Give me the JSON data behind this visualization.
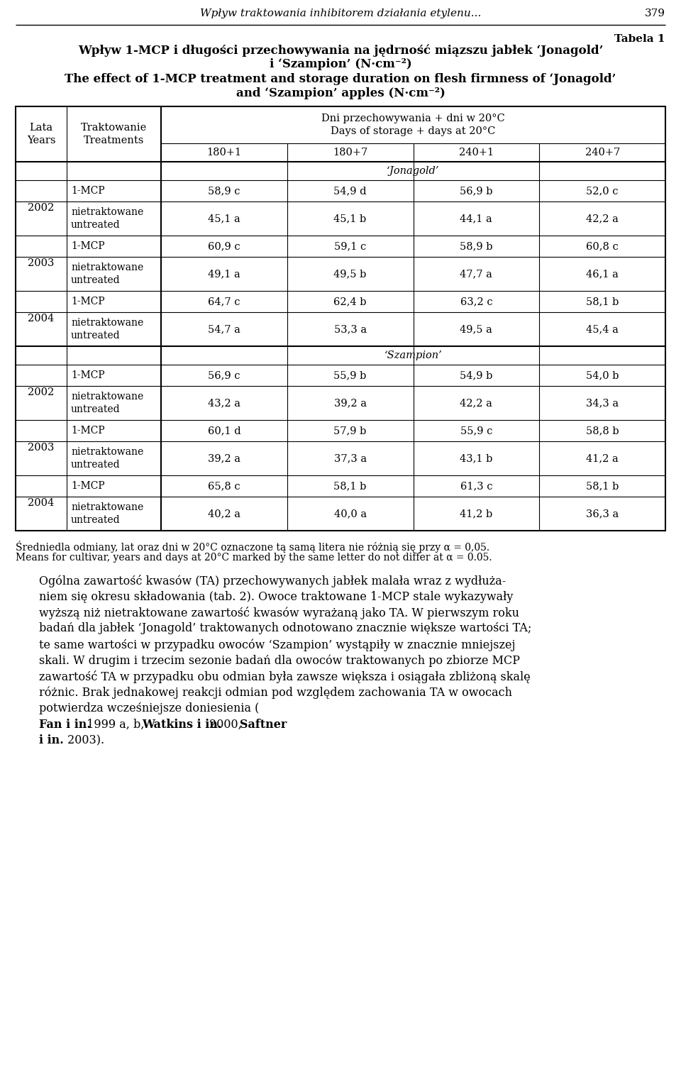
{
  "page_header_italic": "Wpływ traktowania inhibitorem działania etylenu...",
  "page_number": "379",
  "table_label": "Tabela 1",
  "title_pl_line1": "Wpływ 1-MCP i długości przechowywania na jędrność miązszu jabłek ‘Jonagold’",
  "title_pl_line2": "i ‘Szampion’ (N·cm⁻²)",
  "title_en_line1": "The effect of 1-MCP treatment and storage duration on flesh firmness of ‘Jonagold’",
  "title_en_line2": "and ‘Szampion’ apples (N·cm⁻²)",
  "col_header_pl": "Dni przechowywania + dni w 20°C",
  "col_header_en": "Days of storage + days at 20°C",
  "lata_years": "Lata\nYears",
  "traktowanie_treatments": "Traktowanie\nTreatments",
  "storage_cols": [
    "180+1",
    "180+7",
    "240+1",
    "240+7"
  ],
  "jonagold_label": "‘Jonagold’",
  "szampion_label": "‘Szampion’",
  "data_jonagold": [
    {
      "year": "2002",
      "treatment": "1-MCP",
      "vals": [
        "58,9 c",
        "54,9 d",
        "56,9 b",
        "52,0 c"
      ]
    },
    {
      "year": "",
      "treatment": "nietraktowane\nuntreated",
      "vals": [
        "45,1 a",
        "45,1 b",
        "44,1 a",
        "42,2 a"
      ]
    },
    {
      "year": "2003",
      "treatment": "1-MCP",
      "vals": [
        "60,9 c",
        "59,1 c",
        "58,9 b",
        "60,8 c"
      ]
    },
    {
      "year": "",
      "treatment": "nietraktowane\nuntreated",
      "vals": [
        "49,1 a",
        "49,5 b",
        "47,7 a",
        "46,1 a"
      ]
    },
    {
      "year": "2004",
      "treatment": "1-MCP",
      "vals": [
        "64,7 c",
        "62,4 b",
        "63,2 c",
        "58,1 b"
      ]
    },
    {
      "year": "",
      "treatment": "nietraktowane\nuntreated",
      "vals": [
        "54,7 a",
        "53,3 a",
        "49,5 a",
        "45,4 a"
      ]
    }
  ],
  "data_szampion": [
    {
      "year": "2002",
      "treatment": "1-MCP",
      "vals": [
        "56,9 c",
        "55,9 b",
        "54,9 b",
        "54,0 b"
      ]
    },
    {
      "year": "",
      "treatment": "nietraktowane\nuntreated",
      "vals": [
        "43,2 a",
        "39,2 a",
        "42,2 a",
        "34,3 a"
      ]
    },
    {
      "year": "2003",
      "treatment": "1-MCP",
      "vals": [
        "60,1 d",
        "57,9 b",
        "55,9 c",
        "58,8 b"
      ]
    },
    {
      "year": "",
      "treatment": "nietraktowane\nuntreated",
      "vals": [
        "39,2 a",
        "37,3 a",
        "43,1 b",
        "41,2 a"
      ]
    },
    {
      "year": "2004",
      "treatment": "1-MCP",
      "vals": [
        "65,8 c",
        "58,1 b",
        "61,3 c",
        "58,1 b"
      ]
    },
    {
      "year": "",
      "treatment": "nietraktowane\nuntreated",
      "vals": [
        "40,2 a",
        "40,0 a",
        "41,2 b",
        "36,3 a"
      ]
    }
  ],
  "footnote_pl": "Średniedla odmiany, lat oraz dni w 20°C oznaczone tą samą litera nie różnią się przy α = 0,05.",
  "footnote_en": "Means for cultivar, years and days at 20°C marked by the same letter do not differ at α = 0.05.",
  "para_lines": [
    "Ogólna zawartość kwasów (TA) przechowywanych jabłek malała wraz z wydłuża-",
    "niem się okresu składowania (tab. 2). Owoce traktowane 1-MCP stale wykazywały",
    "wyższą niż nietraktowane zawartość kwasów wyrażaną jako TA. W pierwszym roku",
    "badań dla jabłek ‘Jonagold’ traktowanych odnotowano znacznie większe wartości TA;",
    "te same wartości w przypadku owoców ‘Szampion’ wystąpiły w znacznie mniejszej",
    "skali. W drugim i trzecim sezonie badań dla owoców traktowanych po zbiorze MCP",
    "zawartość TA w przypadku obu odmian była zawsze większa i osiągała zbliżoną skalę",
    "różnic. Brak jednakowej reakcji odmian pod względem zachowania TA w owocach",
    "potwierdza wcześniejsze doniesienia ("
  ],
  "para_last_line_segments": [
    {
      "text": "Fan i in.",
      "bold": true
    },
    {
      "text": " 1999 a, b, ",
      "bold": false
    },
    {
      "text": "Watkins i in.",
      "bold": true
    },
    {
      "text": " 2000, ",
      "bold": false
    },
    {
      "text": "Saftner",
      "bold": true
    }
  ],
  "para_final_line_segments": [
    {
      "text": "i in.",
      "bold": true
    },
    {
      "text": " 2003).",
      "bold": false
    }
  ],
  "bg_color": "#ffffff",
  "text_color": "#000000",
  "border_color": "#000000"
}
